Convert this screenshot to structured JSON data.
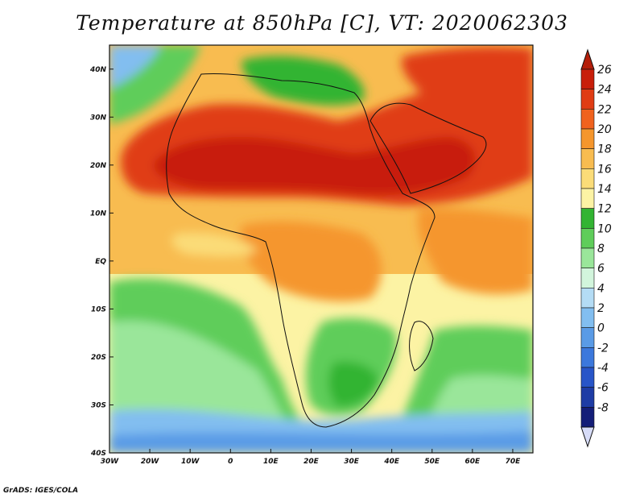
{
  "title": "Temperature at 850hPa [C], VT: 2020062303",
  "credit": "GrADS: IGES/COLA",
  "map": {
    "lon_range": [
      -30,
      75
    ],
    "lat_range": [
      -40,
      45
    ],
    "lon_ticks": [
      {
        "value": -30,
        "label": "30W"
      },
      {
        "value": -20,
        "label": "20W"
      },
      {
        "value": -10,
        "label": "10W"
      },
      {
        "value": 0,
        "label": "0"
      },
      {
        "value": 10,
        "label": "10E"
      },
      {
        "value": 20,
        "label": "20E"
      },
      {
        "value": 30,
        "label": "30E"
      },
      {
        "value": 40,
        "label": "40E"
      },
      {
        "value": 50,
        "label": "50E"
      },
      {
        "value": 60,
        "label": "60E"
      },
      {
        "value": 70,
        "label": "70E"
      }
    ],
    "lat_ticks": [
      {
        "value": 40,
        "label": "40N"
      },
      {
        "value": 30,
        "label": "30N"
      },
      {
        "value": 20,
        "label": "20N"
      },
      {
        "value": 10,
        "label": "10N"
      },
      {
        "value": 0,
        "label": "EQ"
      },
      {
        "value": -10,
        "label": "10S"
      },
      {
        "value": -20,
        "label": "20S"
      },
      {
        "value": -30,
        "label": "30S"
      },
      {
        "value": -40,
        "label": "40S"
      }
    ]
  },
  "colorbar": {
    "levels": [
      {
        "label": "26",
        "color": "#c81e0a"
      },
      {
        "label": "24",
        "color": "#e03c14"
      },
      {
        "label": "22",
        "color": "#f0621e"
      },
      {
        "label": "20",
        "color": "#f5962d"
      },
      {
        "label": "18",
        "color": "#f8bc50"
      },
      {
        "label": "16",
        "color": "#fbdc78"
      },
      {
        "label": "14",
        "color": "#fcf3a4"
      },
      {
        "label": "12",
        "color": "#32b432"
      },
      {
        "label": "10",
        "color": "#5fcd5a"
      },
      {
        "label": "8",
        "color": "#9ae69a"
      },
      {
        "label": "6",
        "color": "#d2f5dc"
      },
      {
        "label": "4",
        "color": "#b4dcf5"
      },
      {
        "label": "2",
        "color": "#82bef0"
      },
      {
        "label": "0",
        "color": "#5a9be6"
      },
      {
        "label": "-2",
        "color": "#3c78dc"
      },
      {
        "label": "-4",
        "color": "#2855c8"
      },
      {
        "label": "-6",
        "color": "#1e3ca5"
      },
      {
        "label": "-8",
        "color": "#141e78"
      }
    ],
    "top_arrow_color": "#b41e0a",
    "bottom_arrow_color": "#d7dcf8"
  },
  "colors": {
    "ocean_south_cold": "#5a9be6",
    "ocean_south": "#9ae69a",
    "ocean_mid": "#fbdc78",
    "land_hot": "#e03c14",
    "land_warm": "#f5962d",
    "south_africa": "#5fcd5a",
    "mediterranean": "#32b432"
  }
}
